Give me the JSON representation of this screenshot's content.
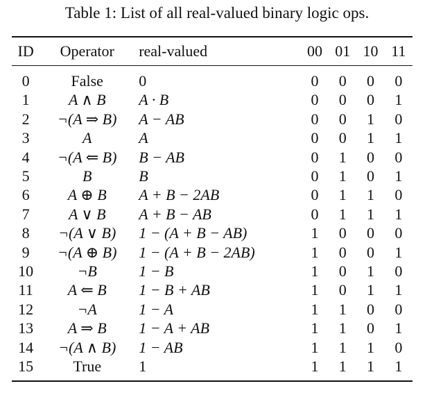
{
  "caption": "Table 1: List of all real-valued binary logic ops.",
  "headers": {
    "id": "ID",
    "operator": "Operator",
    "real_valued": "real-valued",
    "b00": "00",
    "b01": "01",
    "b10": "10",
    "b11": "11"
  },
  "rows": [
    {
      "id": "0",
      "op": "False",
      "op_math": false,
      "rv": "0",
      "bits": [
        "0",
        "0",
        "0",
        "0"
      ]
    },
    {
      "id": "1",
      "op": "A ∧ B",
      "op_math": true,
      "rv": "A · B",
      "bits": [
        "0",
        "0",
        "0",
        "1"
      ]
    },
    {
      "id": "2",
      "op": "¬(A ⇒ B)",
      "op_math": true,
      "rv": "A − AB",
      "bits": [
        "0",
        "0",
        "1",
        "0"
      ]
    },
    {
      "id": "3",
      "op": "A",
      "op_math": true,
      "rv": "A",
      "bits": [
        "0",
        "0",
        "1",
        "1"
      ]
    },
    {
      "id": "4",
      "op": "¬(A ⇐ B)",
      "op_math": true,
      "rv": "B − AB",
      "bits": [
        "0",
        "1",
        "0",
        "0"
      ]
    },
    {
      "id": "5",
      "op": "B",
      "op_math": true,
      "rv": "B",
      "bits": [
        "0",
        "1",
        "0",
        "1"
      ]
    },
    {
      "id": "6",
      "op": "A ⊕ B",
      "op_math": true,
      "rv": "A + B − 2AB",
      "bits": [
        "0",
        "1",
        "1",
        "0"
      ]
    },
    {
      "id": "7",
      "op": "A ∨ B",
      "op_math": true,
      "rv": "A + B − AB",
      "bits": [
        "0",
        "1",
        "1",
        "1"
      ]
    },
    {
      "id": "8",
      "op": "¬(A ∨ B)",
      "op_math": true,
      "rv": "1 − (A + B − AB)",
      "bits": [
        "1",
        "0",
        "0",
        "0"
      ]
    },
    {
      "id": "9",
      "op": "¬(A ⊕ B)",
      "op_math": true,
      "rv": "1 − (A + B − 2AB)",
      "bits": [
        "1",
        "0",
        "0",
        "1"
      ]
    },
    {
      "id": "10",
      "op": "¬B",
      "op_math": true,
      "rv": "1 − B",
      "bits": [
        "1",
        "0",
        "1",
        "0"
      ]
    },
    {
      "id": "11",
      "op": "A ⇐ B",
      "op_math": true,
      "rv": "1 − B + AB",
      "bits": [
        "1",
        "0",
        "1",
        "1"
      ]
    },
    {
      "id": "12",
      "op": "¬A",
      "op_math": true,
      "rv": "1 − A",
      "bits": [
        "1",
        "1",
        "0",
        "0"
      ]
    },
    {
      "id": "13",
      "op": "A ⇒ B",
      "op_math": true,
      "rv": "1 − A + AB",
      "bits": [
        "1",
        "1",
        "0",
        "1"
      ]
    },
    {
      "id": "14",
      "op": "¬(A ∧ B)",
      "op_math": true,
      "rv": "1 − AB",
      "bits": [
        "1",
        "1",
        "1",
        "0"
      ]
    },
    {
      "id": "15",
      "op": "True",
      "op_math": false,
      "rv": "1",
      "bits": [
        "1",
        "1",
        "1",
        "1"
      ]
    }
  ]
}
